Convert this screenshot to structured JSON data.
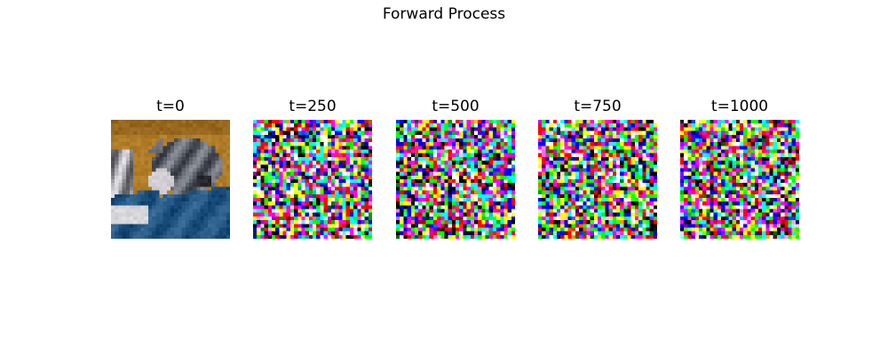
{
  "figure": {
    "title": "Forward Process"
  },
  "panels": [
    {
      "title": "t=0",
      "image": "cifar-cat-photo"
    },
    {
      "title": "t=250",
      "image": "noisy-pixel-grid"
    },
    {
      "title": "t=500",
      "image": "noisy-pixel-grid"
    },
    {
      "title": "t=750",
      "image": "noisy-pixel-grid"
    },
    {
      "title": "t=1000",
      "image": "noisy-pixel-grid"
    }
  ]
}
